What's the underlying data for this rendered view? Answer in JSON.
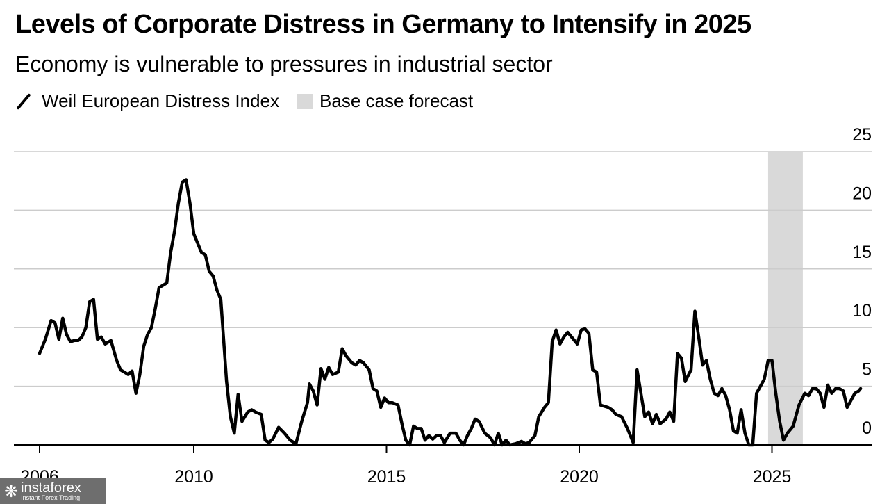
{
  "header": {
    "title": "Levels of Corporate Distress in Germany to Intensify in 2025",
    "subtitle": "Economy is vulnerable to pressures in industrial sector"
  },
  "legend": {
    "line_label": "Weil European Distress Index",
    "band_label": "Base case forecast"
  },
  "watermark": {
    "brand": "instaforex",
    "tagline": "Instant Forex Trading"
  },
  "colors": {
    "line": "#000000",
    "forecast_band": "#d9d9d9",
    "grid": "#cccccc",
    "axis": "#000000"
  },
  "chart_data": {
    "type": "line",
    "title": "Levels of Corporate Distress in Germany to Intensify in 2025",
    "subtitle": "Economy is vulnerable to pressures in industrial sector",
    "xlabel": "",
    "ylabel": "",
    "xlim": [
      2006,
      2027.6
    ],
    "ylim": [
      0,
      25
    ],
    "x_ticks": [
      2006,
      2010,
      2015,
      2020,
      2025
    ],
    "x_tick_labels": [
      "2006",
      "2010",
      "2015",
      "2020",
      "2025"
    ],
    "y_ticks": [
      0,
      5,
      10,
      15,
      20,
      25
    ],
    "y_tick_labels": [
      "0",
      "5",
      "10",
      "15",
      "20",
      "25"
    ],
    "grid": true,
    "legend_position": "top-left",
    "forecast_band": {
      "label": "Base case forecast",
      "x_start": 2024.9,
      "x_end": 2025.8
    },
    "series": [
      {
        "name": "Weil European Distress Index",
        "points": [
          [
            2006.0,
            7.8
          ],
          [
            2006.15,
            9.0
          ],
          [
            2006.3,
            10.6
          ],
          [
            2006.4,
            10.4
          ],
          [
            2006.5,
            9.0
          ],
          [
            2006.6,
            10.8
          ],
          [
            2006.7,
            9.4
          ],
          [
            2006.8,
            8.8
          ],
          [
            2006.9,
            8.9
          ],
          [
            2007.0,
            8.9
          ],
          [
            2007.1,
            9.2
          ],
          [
            2007.2,
            10.0
          ],
          [
            2007.3,
            12.2
          ],
          [
            2007.4,
            12.4
          ],
          [
            2007.5,
            9.0
          ],
          [
            2007.6,
            9.2
          ],
          [
            2007.7,
            8.6
          ],
          [
            2007.85,
            8.9
          ],
          [
            2008.0,
            7.2
          ],
          [
            2008.1,
            6.4
          ],
          [
            2008.2,
            6.2
          ],
          [
            2008.3,
            6.0
          ],
          [
            2008.4,
            6.3
          ],
          [
            2008.5,
            4.4
          ],
          [
            2008.6,
            6.0
          ],
          [
            2008.7,
            8.4
          ],
          [
            2008.8,
            9.4
          ],
          [
            2008.9,
            10.0
          ],
          [
            2009.0,
            11.6
          ],
          [
            2009.1,
            13.4
          ],
          [
            2009.3,
            13.8
          ],
          [
            2009.4,
            16.4
          ],
          [
            2009.5,
            18.2
          ],
          [
            2009.6,
            20.6
          ],
          [
            2009.7,
            22.4
          ],
          [
            2009.8,
            22.6
          ],
          [
            2009.9,
            20.6
          ],
          [
            2010.0,
            18.0
          ],
          [
            2010.1,
            17.2
          ],
          [
            2010.2,
            16.4
          ],
          [
            2010.3,
            16.2
          ],
          [
            2010.4,
            14.8
          ],
          [
            2010.5,
            14.4
          ],
          [
            2010.6,
            13.2
          ],
          [
            2010.7,
            12.4
          ],
          [
            2010.85,
            5.4
          ],
          [
            2010.95,
            2.4
          ],
          [
            2011.05,
            1.0
          ],
          [
            2011.15,
            4.3
          ],
          [
            2011.25,
            2.0
          ],
          [
            2011.4,
            2.8
          ],
          [
            2011.5,
            3.0
          ],
          [
            2011.6,
            2.8
          ],
          [
            2011.75,
            2.6
          ],
          [
            2011.85,
            0.4
          ],
          [
            2011.95,
            0.2
          ],
          [
            2012.05,
            0.5
          ],
          [
            2012.2,
            1.5
          ],
          [
            2012.35,
            1.0
          ],
          [
            2012.5,
            0.4
          ],
          [
            2012.65,
            0.1
          ],
          [
            2012.8,
            2.0
          ],
          [
            2012.95,
            3.6
          ],
          [
            2013.0,
            5.2
          ],
          [
            2013.1,
            4.6
          ],
          [
            2013.2,
            3.4
          ],
          [
            2013.3,
            6.5
          ],
          [
            2013.4,
            5.6
          ],
          [
            2013.5,
            6.6
          ],
          [
            2013.6,
            6.0
          ],
          [
            2013.75,
            6.2
          ],
          [
            2013.85,
            8.2
          ],
          [
            2013.95,
            7.6
          ],
          [
            2014.1,
            7.0
          ],
          [
            2014.2,
            6.8
          ],
          [
            2014.3,
            7.2
          ],
          [
            2014.4,
            7.0
          ],
          [
            2014.55,
            6.4
          ],
          [
            2014.65,
            4.8
          ],
          [
            2014.75,
            4.6
          ],
          [
            2014.85,
            3.2
          ],
          [
            2014.95,
            4.0
          ],
          [
            2015.05,
            3.6
          ],
          [
            2015.15,
            3.6
          ],
          [
            2015.3,
            3.4
          ],
          [
            2015.4,
            1.8
          ],
          [
            2015.5,
            0.4
          ],
          [
            2015.6,
            0.0
          ],
          [
            2015.7,
            1.6
          ],
          [
            2015.8,
            1.4
          ],
          [
            2015.9,
            1.4
          ],
          [
            2016.0,
            0.4
          ],
          [
            2016.1,
            0.8
          ],
          [
            2016.2,
            0.5
          ],
          [
            2016.3,
            0.8
          ],
          [
            2016.4,
            0.8
          ],
          [
            2016.5,
            0.2
          ],
          [
            2016.65,
            1.0
          ],
          [
            2016.8,
            1.0
          ],
          [
            2016.9,
            0.4
          ],
          [
            2017.0,
            0.0
          ],
          [
            2017.1,
            0.8
          ],
          [
            2017.2,
            1.4
          ],
          [
            2017.3,
            2.2
          ],
          [
            2017.4,
            2.0
          ],
          [
            2017.55,
            1.0
          ],
          [
            2017.7,
            0.6
          ],
          [
            2017.8,
            0.0
          ],
          [
            2017.9,
            1.0
          ],
          [
            2018.0,
            0.0
          ],
          [
            2018.1,
            0.4
          ],
          [
            2018.2,
            0.0
          ],
          [
            2018.35,
            0.1
          ],
          [
            2018.5,
            0.3
          ],
          [
            2018.6,
            0.1
          ],
          [
            2018.7,
            0.2
          ],
          [
            2018.85,
            0.8
          ],
          [
            2018.95,
            2.4
          ],
          [
            2019.1,
            3.2
          ],
          [
            2019.2,
            3.6
          ],
          [
            2019.3,
            8.8
          ],
          [
            2019.4,
            9.8
          ],
          [
            2019.5,
            8.6
          ],
          [
            2019.6,
            9.2
          ],
          [
            2019.7,
            9.6
          ],
          [
            2019.85,
            9.0
          ],
          [
            2019.95,
            8.6
          ],
          [
            2020.05,
            9.8
          ],
          [
            2020.15,
            9.9
          ],
          [
            2020.25,
            9.5
          ],
          [
            2020.35,
            6.4
          ],
          [
            2020.45,
            6.2
          ],
          [
            2020.55,
            3.4
          ],
          [
            2020.75,
            3.2
          ],
          [
            2020.85,
            3.0
          ],
          [
            2020.95,
            2.6
          ],
          [
            2021.1,
            2.4
          ],
          [
            2021.25,
            1.4
          ],
          [
            2021.4,
            0.2
          ],
          [
            2021.5,
            6.4
          ],
          [
            2021.6,
            4.4
          ],
          [
            2021.7,
            2.4
          ],
          [
            2021.8,
            2.8
          ],
          [
            2021.9,
            1.8
          ],
          [
            2022.0,
            2.6
          ],
          [
            2022.1,
            1.8
          ],
          [
            2022.25,
            2.2
          ],
          [
            2022.35,
            2.8
          ],
          [
            2022.45,
            2.0
          ],
          [
            2022.55,
            7.8
          ],
          [
            2022.65,
            7.4
          ],
          [
            2022.75,
            5.4
          ],
          [
            2022.9,
            6.4
          ],
          [
            2023.0,
            11.4
          ],
          [
            2023.1,
            9.2
          ],
          [
            2023.2,
            6.8
          ],
          [
            2023.3,
            7.2
          ],
          [
            2023.4,
            5.6
          ],
          [
            2023.5,
            4.4
          ],
          [
            2023.6,
            4.2
          ],
          [
            2023.7,
            4.8
          ],
          [
            2023.8,
            4.2
          ],
          [
            2023.9,
            3.0
          ],
          [
            2024.0,
            1.2
          ],
          [
            2024.1,
            1.0
          ],
          [
            2024.2,
            3.0
          ],
          [
            2024.3,
            1.0
          ],
          [
            2024.4,
            0.0
          ],
          [
            2024.5,
            0.0
          ],
          [
            2024.6,
            4.4
          ],
          [
            2024.7,
            5.0
          ],
          [
            2024.8,
            5.6
          ],
          [
            2024.9,
            7.2
          ],
          [
            2025.0,
            7.2
          ],
          [
            2025.1,
            4.4
          ],
          [
            2025.2,
            2.0
          ],
          [
            2025.3,
            0.4
          ],
          [
            2025.4,
            1.0
          ],
          [
            2025.55,
            1.6
          ],
          [
            2025.7,
            3.4
          ],
          [
            2025.85,
            4.4
          ],
          [
            2025.95,
            4.2
          ],
          [
            2026.05,
            4.8
          ],
          [
            2026.15,
            4.8
          ],
          [
            2026.25,
            4.4
          ],
          [
            2026.35,
            3.2
          ],
          [
            2026.45,
            5.1
          ],
          [
            2026.55,
            4.4
          ],
          [
            2026.65,
            4.8
          ],
          [
            2026.75,
            4.8
          ],
          [
            2026.85,
            4.6
          ],
          [
            2026.95,
            3.2
          ],
          [
            2027.05,
            3.8
          ],
          [
            2027.15,
            4.4
          ],
          [
            2027.25,
            4.6
          ],
          [
            2027.3,
            4.8
          ]
        ]
      }
    ]
  }
}
